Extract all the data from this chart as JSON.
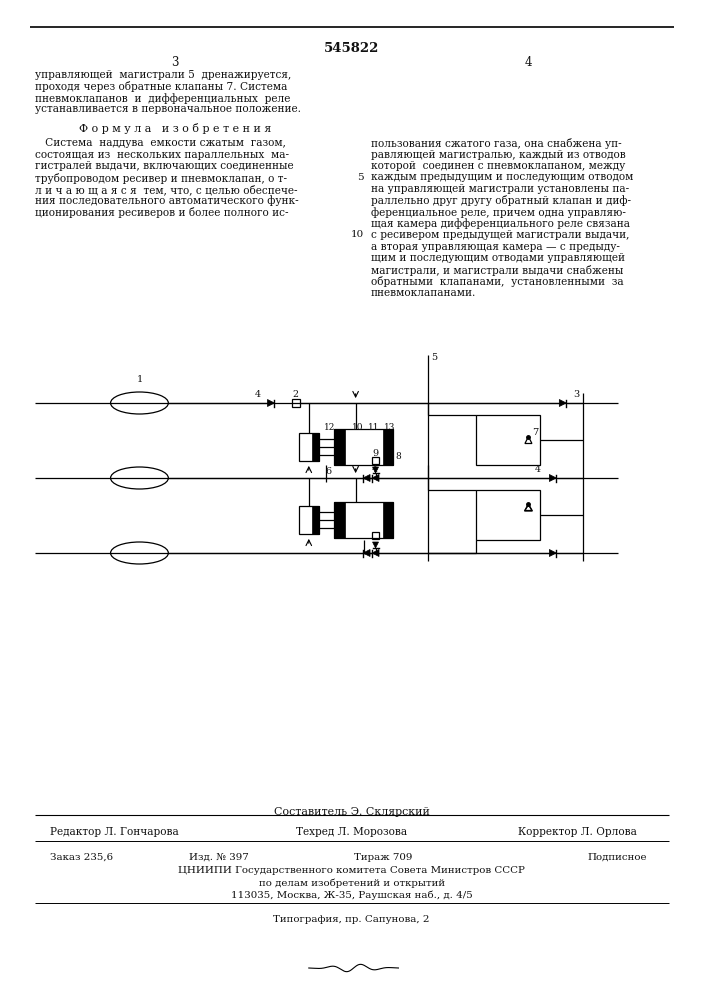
{
  "patent_number": "545822",
  "page_left": "3",
  "page_right": "4",
  "top_left_lines": [
    "управляющей  магистрали 5  дренажируется,",
    "проходя через обратные клапаны 7. Система",
    "пневмоклапанов  и  дифференциальных  реле",
    "устанавливается в первоначальное положение."
  ],
  "formula_title": "Ф о р м у л а   и з о б р е т е н и я",
  "formula_left": [
    "   Система  наддува  емкости сжатым  газом,",
    "состоящая из  нескольких параллельных  ма-",
    "гистралей выдачи, включающих соединенные",
    "трубопроводом ресивер и пневмоклапан, о т-",
    "л и ч а ю щ а я с я  тем, что, с целью обеспече-",
    "ния последовательного автоматического функ-",
    "ционирования ресиверов и более полного ис-"
  ],
  "formula_right": [
    "пользования сжатого газа, она снабжена уп-",
    "равляющей магистралью, каждый из отводов",
    "которой  соединен с пневмоклапаном, между",
    "каждым предыдущим и последующим отводом",
    "на управляющей магистрали установлены па-",
    "раллельно друг другу обратный клапан и диф-",
    "ференциальное реле, причем одна управляю-",
    "щая камера дифференциального реле связана",
    "с ресивером предыдущей магистрали выдачи,",
    "а вторая управляющая камера — с предыду-",
    "щим и последующим отводами управляющей",
    "магистрали, и магистрали выдачи снабжены",
    "обратными  клапанами,  установленными  за",
    "пневмоклапанами."
  ],
  "composer": "Составитель Э. Склярский",
  "editor": "Редактор Л. Гончарова",
  "techred": "Техред Л. Морозова",
  "corrector": "Корректор Л. Орлова",
  "order": "Заказ 235,6",
  "edition": "Изд. № 397",
  "circulation": "Тираж 709",
  "subscription": "Подписное",
  "institute": "ЦНИИПИ Государственного комитета Совета Министров СССР",
  "institute2": "по делам изобретений и открытий",
  "address": "113035, Москва, Ж-35, Раушская наб., д. 4/5",
  "print_info": "Типография, пр. Сапунова, 2",
  "bg_color": "#ffffff",
  "text_color": "#111111"
}
